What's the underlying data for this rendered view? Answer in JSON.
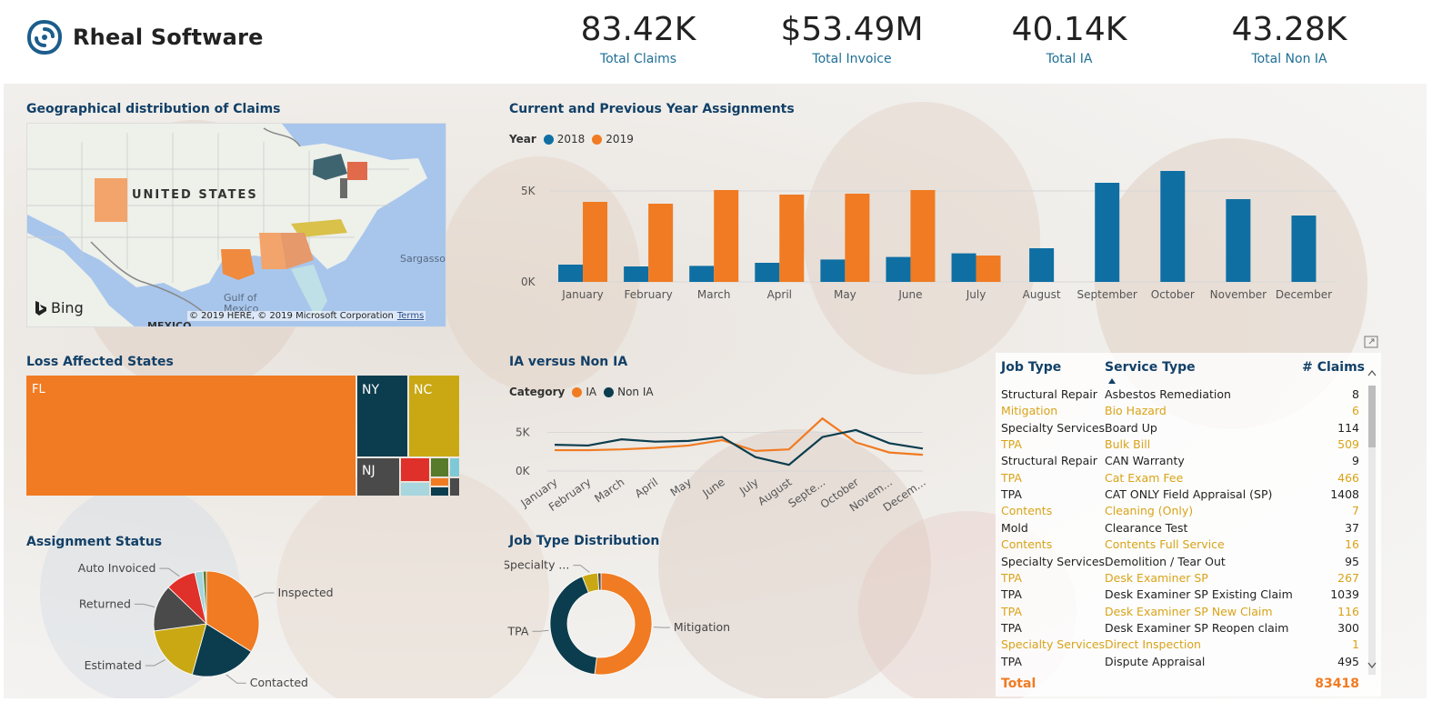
{
  "brand": {
    "name": "Rheal Software"
  },
  "kpis": [
    {
      "value": "83.42K",
      "label": "Total Claims"
    },
    {
      "value": "$53.49M",
      "label": "Total Invoice"
    },
    {
      "value": "40.14K",
      "label": "Total IA"
    },
    {
      "value": "43.28K",
      "label": "Total Non IA"
    }
  ],
  "map": {
    "title": "Geographical distribution of Claims",
    "country_label": "UNITED STATES",
    "labels": {
      "gulf": "Gulf of Mexico",
      "sargasso": "Sargasso",
      "mexico": "MEXICO"
    },
    "bing": "Bing",
    "copyright": "© 2019 HERE, © 2019 Microsoft Corporation",
    "terms": "Terms"
  },
  "assignments": {
    "title": "Current and Previous Year Assignments",
    "legend_title": "Year",
    "chart_data": {
      "type": "bar",
      "categories": [
        "January",
        "February",
        "March",
        "April",
        "May",
        "June",
        "July",
        "August",
        "September",
        "October",
        "November",
        "December"
      ],
      "series": [
        {
          "name": "2018",
          "color": "#0f6fa3",
          "values": [
            950,
            850,
            880,
            1050,
            1230,
            1370,
            1570,
            1850,
            5450,
            6100,
            4550,
            3650
          ]
        },
        {
          "name": "2019",
          "color": "#f07b22",
          "values": [
            4400,
            4300,
            5050,
            4800,
            4850,
            5050,
            1450,
            null,
            null,
            null,
            null,
            null
          ]
        }
      ],
      "ylim": [
        0,
        6500
      ],
      "yticks": [
        0,
        5000
      ],
      "ytick_labels": [
        "0K",
        "5K"
      ],
      "grid": true
    }
  },
  "loss_states": {
    "title": "Loss Affected States",
    "tiles": [
      {
        "label": "FL",
        "color": "#f07b22"
      },
      {
        "label": "NY",
        "color": "#0b3d4e"
      },
      {
        "label": "NC",
        "color": "#c9a814"
      },
      {
        "label": "NJ",
        "color": "#4a4a4a"
      }
    ],
    "small_colors": [
      "#e0302a",
      "#587a2b",
      "#7fc9d6",
      "#a7d6de",
      "#f07b22",
      "#0b3d4e",
      "#4a4a4a"
    ]
  },
  "ia_vs_nonia": {
    "title": "IA versus Non IA",
    "legend_title": "Category",
    "chart_data": {
      "type": "line",
      "categories": [
        "January",
        "February",
        "March",
        "April",
        "May",
        "June",
        "July",
        "August",
        "Septe...",
        "October",
        "Novem...",
        "Decem..."
      ],
      "series": [
        {
          "name": "IA",
          "color": "#f07b22",
          "values": [
            2700,
            2700,
            2800,
            3000,
            3300,
            4000,
            2600,
            2800,
            6800,
            3700,
            2400,
            2100
          ]
        },
        {
          "name": "Non IA",
          "color": "#0b3d4e",
          "values": [
            3400,
            3300,
            4100,
            3800,
            3900,
            4400,
            1800,
            800,
            4400,
            5300,
            3600,
            2900
          ]
        }
      ],
      "ylim": [
        0,
        8000
      ],
      "yticks": [
        0,
        5000
      ],
      "ytick_labels": [
        "0K",
        "5K"
      ]
    }
  },
  "assignment_status": {
    "title": "Assignment Status",
    "chart_data": {
      "type": "pie",
      "labels": [
        "Inspected",
        "Contacted",
        "Estimated",
        "Returned",
        "Auto Invoiced",
        "Other 1",
        "Other 2"
      ],
      "values": [
        33,
        20,
        18,
        14,
        9,
        2.5,
        1
      ],
      "colors": [
        "#f07b22",
        "#0b3d4e",
        "#c9a814",
        "#4a4a4a",
        "#e0302a",
        "#a7d6de",
        "#587a2b"
      ],
      "shown_labels": [
        "Inspected",
        "Contacted",
        "Estimated",
        "Returned",
        "Auto Invoiced"
      ]
    }
  },
  "job_type": {
    "title": "Job Type Distribution",
    "chart_data": {
      "type": "pie",
      "labels": [
        "Mitigation",
        "TPA",
        "Specialty ...",
        "Other"
      ],
      "values": [
        52,
        42,
        5,
        1
      ],
      "colors": [
        "#f07b22",
        "#0b3d4e",
        "#c9a814",
        "#4a4a4a"
      ]
    }
  },
  "table": {
    "headers": {
      "job_type": "Job Type",
      "service_type": "Service Type",
      "claims": "# Claims"
    },
    "rows": [
      {
        "job": "Structural Repair",
        "service": "Asbestos Remediation",
        "claims": "8"
      },
      {
        "job": "Mitigation",
        "service": "Bio Hazard",
        "claims": "6"
      },
      {
        "job": "Specialty Services",
        "service": "Board Up",
        "claims": "114"
      },
      {
        "job": "TPA",
        "service": "Bulk Bill",
        "claims": "509"
      },
      {
        "job": "Structural Repair",
        "service": "CAN Warranty",
        "claims": "9"
      },
      {
        "job": "TPA",
        "service": "Cat Exam Fee",
        "claims": "466"
      },
      {
        "job": "TPA",
        "service": "CAT ONLY Field Appraisal (SP)",
        "claims": "1408"
      },
      {
        "job": "Contents",
        "service": "Cleaning (Only)",
        "claims": "7"
      },
      {
        "job": "Mold",
        "service": "Clearance Test",
        "claims": "37"
      },
      {
        "job": "Contents",
        "service": "Contents Full Service",
        "claims": "16"
      },
      {
        "job": "Specialty Services",
        "service": "Demolition / Tear Out",
        "claims": "95"
      },
      {
        "job": "TPA",
        "service": "Desk Examiner SP",
        "claims": "267"
      },
      {
        "job": "TPA",
        "service": "Desk Examiner SP Existing Claim",
        "claims": "1039"
      },
      {
        "job": "TPA",
        "service": "Desk Examiner SP New Claim",
        "claims": "116"
      },
      {
        "job": "TPA",
        "service": "Desk Examiner SP Reopen claim",
        "claims": "300"
      },
      {
        "job": "Specialty Services",
        "service": "Direct Inspection",
        "claims": "1"
      },
      {
        "job": "TPA",
        "service": "Dispute Appraisal",
        "claims": "495"
      }
    ],
    "total_label": "Total",
    "total_value": "83418"
  }
}
